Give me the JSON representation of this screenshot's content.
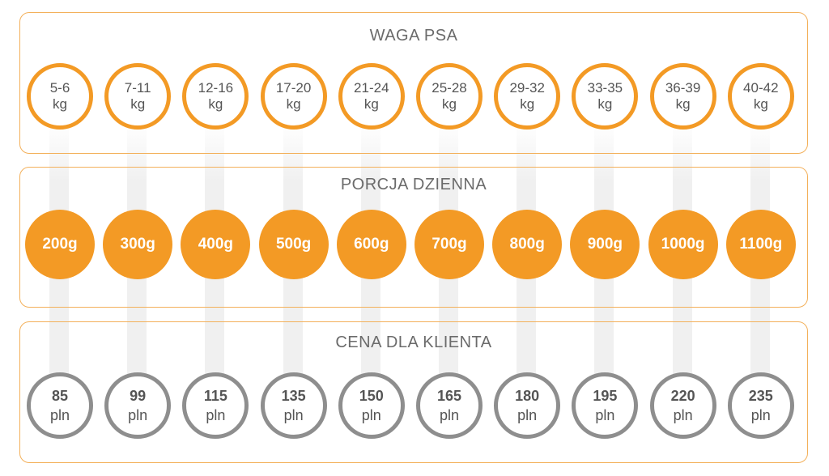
{
  "colors": {
    "accent": "#f39a25",
    "border": "#f3b05a",
    "price_ring": "#8e8e8e",
    "text": "#555555"
  },
  "weight": {
    "title": "WAGA PSA",
    "items": [
      {
        "range": "5-6",
        "unit": "kg"
      },
      {
        "range": "7-11",
        "unit": "kg"
      },
      {
        "range": "12-16",
        "unit": "kg"
      },
      {
        "range": "17-20",
        "unit": "kg"
      },
      {
        "range": "21-24",
        "unit": "kg"
      },
      {
        "range": "25-28",
        "unit": "kg"
      },
      {
        "range": "29-32",
        "unit": "kg"
      },
      {
        "range": "33-35",
        "unit": "kg"
      },
      {
        "range": "36-39",
        "unit": "kg"
      },
      {
        "range": "40-42",
        "unit": "kg"
      }
    ]
  },
  "portion": {
    "title": "PORCJA DZIENNA",
    "items": [
      "200g",
      "300g",
      "400g",
      "500g",
      "600g",
      "700g",
      "800g",
      "900g",
      "1000g",
      "1100g"
    ]
  },
  "price": {
    "title": "CENA DLA KLIENTA",
    "items": [
      {
        "value": "85",
        "unit": "pln"
      },
      {
        "value": "99",
        "unit": "pln"
      },
      {
        "value": "115",
        "unit": "pln"
      },
      {
        "value": "135",
        "unit": "pln"
      },
      {
        "value": "150",
        "unit": "pln"
      },
      {
        "value": "165",
        "unit": "pln"
      },
      {
        "value": "180",
        "unit": "pln"
      },
      {
        "value": "195",
        "unit": "pln"
      },
      {
        "value": "220",
        "unit": "pln"
      },
      {
        "value": "235",
        "unit": "pln"
      }
    ]
  }
}
